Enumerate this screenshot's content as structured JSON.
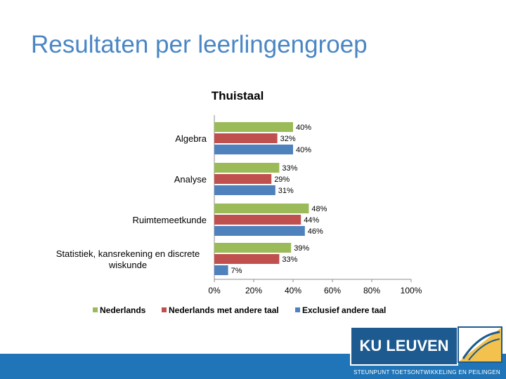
{
  "slide": {
    "title": "Resultaten per leerlingengroep",
    "footer": "STEUNPUNT TOETSONTWIKKELING EN PEILINGEN",
    "logo": "KU LEUVEN"
  },
  "colors": {
    "nederlands": "#9bbb59",
    "andere_taal": "#c0504d",
    "exclusief": "#4f81bd"
  },
  "chart_data": {
    "type": "bar",
    "orientation": "horizontal",
    "title": "Thuistaal",
    "categories": [
      [
        "Algebra"
      ],
      [
        "Analyse"
      ],
      [
        "Ruimtemeetkunde"
      ],
      [
        "Statistiek, kansrekening en discrete",
        "wiskunde"
      ]
    ],
    "series": [
      {
        "name": "Nederlands",
        "values": [
          40,
          33,
          48,
          39
        ],
        "labels": [
          "40%",
          "33%",
          "48%",
          "39%"
        ]
      },
      {
        "name": "Nederlands met andere taal",
        "values": [
          32,
          29,
          44,
          33
        ],
        "labels": [
          "32%",
          "29%",
          "44%",
          "33%"
        ]
      },
      {
        "name": "Exclusief andere taal",
        "values": [
          40,
          31,
          46,
          7
        ],
        "labels": [
          "40%",
          "31%",
          "46%",
          "7%"
        ]
      }
    ],
    "xlim": [
      0,
      100
    ],
    "xticks": [
      0,
      20,
      40,
      60,
      80,
      100
    ],
    "xtick_labels": [
      "0%",
      "20%",
      "40%",
      "60%",
      "80%",
      "100%"
    ],
    "grid": false,
    "legend_position": "bottom"
  }
}
